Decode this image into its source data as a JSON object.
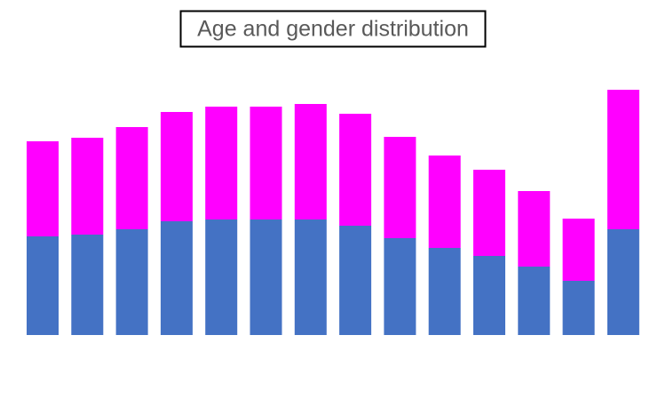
{
  "chart_data": {
    "type": "stacked-bar",
    "title": "Age and gender distribution",
    "categories": [
      null,
      null,
      null,
      null,
      null,
      null,
      null,
      null,
      null,
      null,
      null,
      null,
      null,
      null
    ],
    "series": [
      {
        "color": "#4472c4",
        "values": [
          111,
          113,
          119,
          128,
          130,
          130,
          130,
          123,
          109,
          98,
          89,
          77,
          61,
          119
        ]
      },
      {
        "color": "#ff00ff",
        "values": [
          107,
          109,
          115,
          123,
          127,
          127,
          130,
          126,
          114,
          104,
          97,
          85,
          70,
          157
        ]
      }
    ],
    "ylim": [
      0,
      290
    ]
  }
}
